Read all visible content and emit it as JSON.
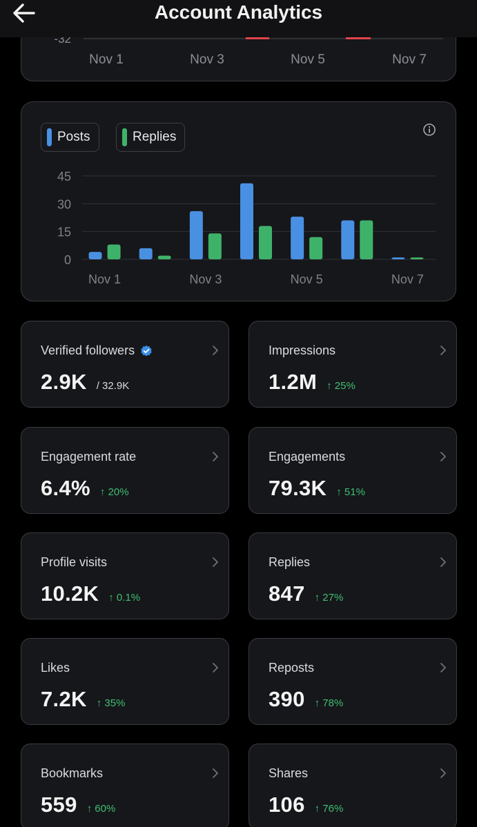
{
  "header": {
    "title": "Account Analytics",
    "back_icon": "arrow-left-icon"
  },
  "top_chart": {
    "partial_tick": "-32",
    "x_labels": [
      "Nov 1",
      "Nov 3",
      "Nov 5",
      "Nov 7"
    ]
  },
  "chart_data": {
    "type": "bar",
    "title": "",
    "xlabel": "",
    "ylabel": "",
    "ylim": [
      0,
      45
    ],
    "y_ticks": [
      "45",
      "30",
      "15",
      "0"
    ],
    "x_tick_labels": [
      "Nov 1",
      "Nov 3",
      "Nov 5",
      "Nov 7"
    ],
    "categories": [
      "Nov 1",
      "Nov 2",
      "Nov 3",
      "Nov 4",
      "Nov 5",
      "Nov 6",
      "Nov 7"
    ],
    "series": [
      {
        "name": "Posts",
        "color": "#4a90e2",
        "values": [
          4,
          6,
          26,
          41,
          23,
          21,
          1
        ]
      },
      {
        "name": "Replies",
        "color": "#3fb26a",
        "values": [
          8,
          2,
          14,
          18,
          12,
          21,
          1
        ]
      }
    ],
    "legend": "top-left"
  },
  "metrics": [
    {
      "label": "Verified followers",
      "value": "2.9K",
      "sub": "/ 32.9K",
      "change": "",
      "verified": true
    },
    {
      "label": "Impressions",
      "value": "1.2M",
      "sub": "",
      "change": "↑ 25%"
    },
    {
      "label": "Engagement rate",
      "value": "6.4%",
      "sub": "",
      "change": "↑ 20%"
    },
    {
      "label": "Engagements",
      "value": "79.3K",
      "sub": "",
      "change": "↑ 51%"
    },
    {
      "label": "Profile visits",
      "value": "10.2K",
      "sub": "",
      "change": "↑ 0.1%"
    },
    {
      "label": "Replies",
      "value": "847",
      "sub": "",
      "change": "↑ 27%"
    },
    {
      "label": "Likes",
      "value": "7.2K",
      "sub": "",
      "change": "↑ 35%"
    },
    {
      "label": "Reposts",
      "value": "390",
      "sub": "",
      "change": "↑ 78%"
    },
    {
      "label": "Bookmarks",
      "value": "559",
      "sub": "",
      "change": "↑ 60%"
    },
    {
      "label": "Shares",
      "value": "106",
      "sub": "",
      "change": "↑ 76%"
    }
  ]
}
